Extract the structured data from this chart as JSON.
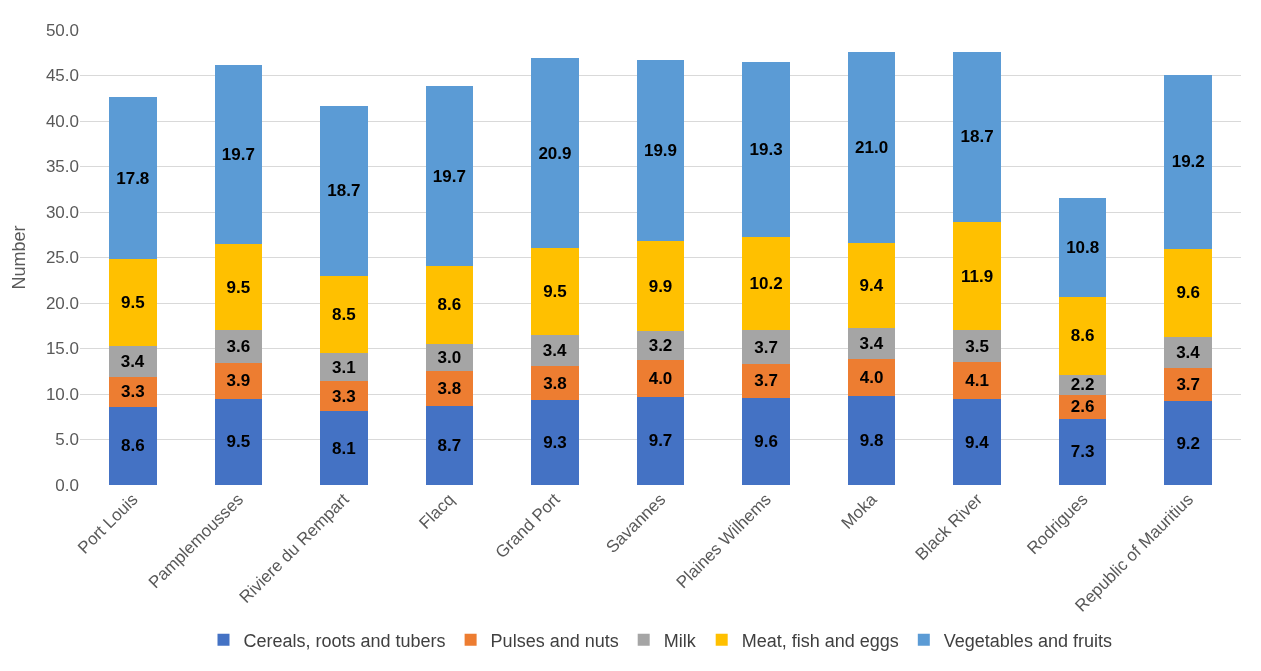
{
  "chart_data": {
    "type": "bar",
    "stacked": true,
    "ylabel": "Number",
    "categories": [
      "Port Louis",
      "Pamplemousses",
      "Riviere du Rempart",
      "Flacq",
      "Grand Port",
      "Savannes",
      "Plaines Wilhems",
      "Moka",
      "Black River",
      "Rodrigues",
      "Republic of Mauritius"
    ],
    "series": [
      {
        "name": "Cereals, roots and tubers",
        "color": "#4472c4",
        "values": [
          8.6,
          9.5,
          8.1,
          8.7,
          9.3,
          9.7,
          9.6,
          9.8,
          9.4,
          7.3,
          9.2
        ],
        "value_labels": [
          "8.6",
          "9.5",
          "8.1",
          "8.7",
          "9.3",
          "9.7",
          "9.6",
          "9.8",
          "9.4",
          "7.3",
          "9.2"
        ]
      },
      {
        "name": "Pulses and nuts",
        "color": "#ed7d31",
        "values": [
          3.3,
          3.9,
          3.3,
          3.8,
          3.8,
          4.0,
          3.7,
          4.0,
          4.1,
          2.6,
          3.7
        ],
        "value_labels": [
          "3.3",
          "3.9",
          "3.3",
          "3.8",
          "3.8",
          "4.0",
          "3.7",
          "4.0",
          "4.1",
          "2.6",
          "3.7"
        ]
      },
      {
        "name": "Milk",
        "color": "#a5a5a5",
        "values": [
          3.4,
          3.6,
          3.1,
          3.0,
          3.4,
          3.2,
          3.7,
          3.4,
          3.5,
          2.2,
          3.4
        ],
        "value_labels": [
          "3.4",
          "3.6",
          "3.1",
          "3.0",
          "3.4",
          "3.2",
          "3.7",
          "3.4",
          "3.5",
          "2.2",
          "3.4"
        ]
      },
      {
        "name": "Meat, fish and eggs",
        "color": "#ffc000",
        "values": [
          9.5,
          9.5,
          8.5,
          8.6,
          9.5,
          9.9,
          10.2,
          9.4,
          11.9,
          8.6,
          9.6
        ],
        "value_labels": [
          "9.5",
          "9.5",
          "8.5",
          "8.6",
          "9.5",
          "9.9",
          "10.2",
          "9.4",
          "11.9",
          "8.6",
          "9.6"
        ]
      },
      {
        "name": "Vegetables and fruits",
        "color": "#5b9bd5",
        "values": [
          17.8,
          19.7,
          18.7,
          19.7,
          20.9,
          19.9,
          19.3,
          21.0,
          18.7,
          10.8,
          19.2
        ],
        "value_labels": [
          "17.8",
          "19.7",
          "18.7",
          "19.7",
          "20.9",
          "19.9",
          "19.3",
          "21.0",
          "18.7",
          "10.8",
          "19.2"
        ]
      }
    ],
    "ylim": [
      0,
      50
    ],
    "yticks": [
      {
        "value": 0,
        "label": "0.0"
      },
      {
        "value": 5,
        "label": "5.0"
      },
      {
        "value": 10,
        "label": "10.0"
      },
      {
        "value": 15,
        "label": "15.0"
      },
      {
        "value": 20,
        "label": "20.0"
      },
      {
        "value": 25,
        "label": "25.0"
      },
      {
        "value": 30,
        "label": "30.0"
      },
      {
        "value": 35,
        "label": "35.0"
      },
      {
        "value": 40,
        "label": "40.0"
      },
      {
        "value": 45,
        "label": "45.0"
      },
      {
        "value": 50,
        "label": "50.0"
      }
    ],
    "grid": "y",
    "legend": "bottom"
  }
}
